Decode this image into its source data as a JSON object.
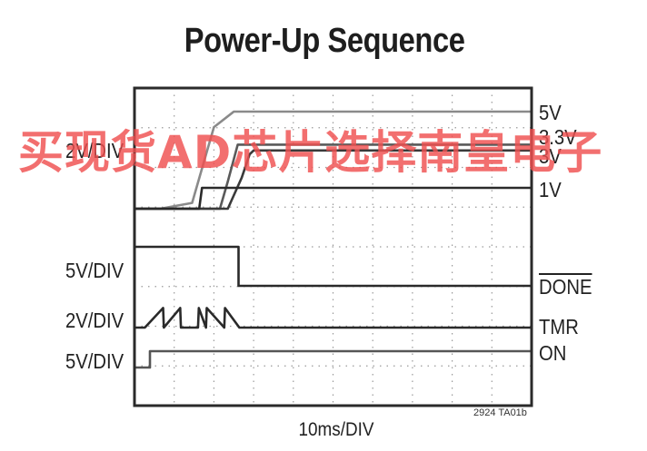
{
  "chart_data": {
    "type": "line",
    "title": "Power-Up Sequence",
    "xlabel": "10ms/DIV",
    "x_divisions": 10,
    "grid": true,
    "channel_scales": [
      {
        "label": "2V/DIV",
        "signals": [
          "5V",
          "3.3V",
          "3V",
          "1V"
        ]
      },
      {
        "label": "5V/DIV",
        "signals": [
          "DONE"
        ]
      },
      {
        "label": "2V/DIV",
        "signals": [
          "TMR"
        ]
      },
      {
        "label": "5V/DIV",
        "signals": [
          "ON"
        ]
      }
    ],
    "series": [
      {
        "name": "5V",
        "x": [
          0,
          6.5,
          14.5,
          20.0,
          25.0,
          100
        ],
        "y": [
          0,
          0,
          0.3,
          4.2,
          5.0,
          5.0
        ]
      },
      {
        "name": "3.3V",
        "x": [
          0,
          21.5,
          23.5,
          26.0,
          100
        ],
        "y": [
          0,
          0,
          1.4,
          3.3,
          3.3
        ]
      },
      {
        "name": "3V",
        "x": [
          0,
          23.5,
          27.0,
          29.0,
          30.0,
          100
        ],
        "y": [
          0,
          0,
          1.6,
          2.8,
          3.0,
          3.0
        ]
      },
      {
        "name": "1V",
        "x": [
          0,
          16.3,
          17.0,
          100
        ],
        "y": [
          0,
          0,
          1.0,
          1.0
        ]
      },
      {
        "name": "DONE",
        "x": [
          0,
          26.2,
          26.2,
          100
        ],
        "y": [
          5,
          5,
          0,
          0
        ]
      },
      {
        "name": "TMR",
        "x": [
          0,
          2.6,
          7.2,
          7.4,
          11.5,
          11.7,
          16.0,
          16.2,
          18.0,
          18.2,
          22.6,
          22.8,
          26.4,
          26.6,
          100
        ],
        "y": [
          0,
          0,
          1.8,
          0,
          1.8,
          0,
          0,
          1.8,
          0,
          1.8,
          0,
          1.8,
          0,
          0,
          0
        ]
      },
      {
        "name": "ON",
        "x": [
          0,
          3.9,
          3.9,
          100
        ],
        "y": [
          0,
          0,
          5,
          5
        ]
      }
    ],
    "figure_id": "2924 TA01b",
    "watermark": "买现货AD芯片选择南皇电子"
  }
}
